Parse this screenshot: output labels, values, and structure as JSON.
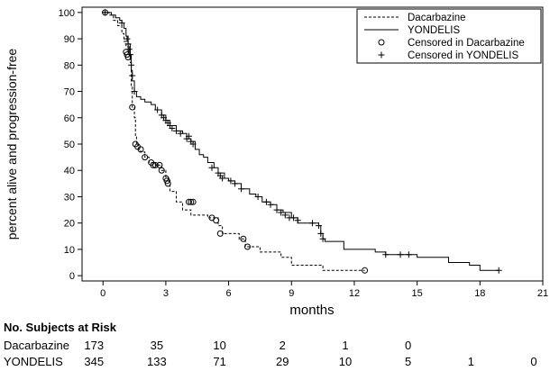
{
  "chart_data": {
    "type": "line",
    "subtype": "kaplan-meier",
    "xlabel": "months",
    "ylabel": "percent alive and progression-free",
    "xlim": [
      -1,
      21
    ],
    "ylim": [
      -2,
      102
    ],
    "xticks": [
      0,
      3,
      6,
      9,
      12,
      15,
      18,
      21
    ],
    "yticks": [
      0,
      10,
      20,
      30,
      40,
      50,
      60,
      70,
      80,
      90,
      100
    ],
    "grid": false,
    "legend_position": "top-right",
    "series": [
      {
        "name": "Dacarbazine",
        "line_style": "dashed",
        "color": "#000000",
        "steps": [
          [
            0,
            100
          ],
          [
            0.3,
            99
          ],
          [
            0.5,
            97
          ],
          [
            0.7,
            95
          ],
          [
            0.9,
            92
          ],
          [
            1.0,
            89
          ],
          [
            1.1,
            87
          ],
          [
            1.2,
            85
          ],
          [
            1.3,
            81
          ],
          [
            1.35,
            72
          ],
          [
            1.4,
            64
          ],
          [
            1.5,
            60
          ],
          [
            1.55,
            53
          ],
          [
            1.6,
            50
          ],
          [
            1.7,
            48
          ],
          [
            1.8,
            47
          ],
          [
            2.0,
            45
          ],
          [
            2.2,
            43
          ],
          [
            2.5,
            42
          ],
          [
            2.8,
            40
          ],
          [
            3.0,
            37
          ],
          [
            3.2,
            32
          ],
          [
            3.5,
            28
          ],
          [
            3.8,
            25
          ],
          [
            4.2,
            23
          ],
          [
            4.5,
            23
          ],
          [
            5.0,
            22
          ],
          [
            5.5,
            19
          ],
          [
            5.7,
            16
          ],
          [
            6.5,
            14
          ],
          [
            6.8,
            11
          ],
          [
            7.5,
            9
          ],
          [
            8.0,
            9
          ],
          [
            8.5,
            7
          ],
          [
            9.0,
            4
          ],
          [
            9.5,
            4
          ],
          [
            10.0,
            4
          ],
          [
            10.5,
            2
          ],
          [
            11.0,
            2
          ],
          [
            12.5,
            2
          ]
        ],
        "censored": [
          [
            0.1,
            100
          ],
          [
            1.1,
            85
          ],
          [
            1.15,
            84
          ],
          [
            1.2,
            83
          ],
          [
            1.4,
            64
          ],
          [
            1.55,
            50
          ],
          [
            1.65,
            49
          ],
          [
            1.8,
            48
          ],
          [
            2.0,
            45
          ],
          [
            2.3,
            43
          ],
          [
            2.4,
            42
          ],
          [
            2.5,
            42
          ],
          [
            2.7,
            42
          ],
          [
            2.8,
            40
          ],
          [
            3.0,
            37
          ],
          [
            3.05,
            36
          ],
          [
            3.1,
            35
          ],
          [
            4.1,
            28
          ],
          [
            4.2,
            28
          ],
          [
            4.3,
            28
          ],
          [
            5.2,
            22
          ],
          [
            5.4,
            21
          ],
          [
            5.6,
            16
          ],
          [
            6.7,
            14
          ],
          [
            6.9,
            11
          ],
          [
            12.5,
            2
          ]
        ]
      },
      {
        "name": "YONDELIS",
        "line_style": "solid",
        "color": "#000000",
        "steps": [
          [
            0,
            100
          ],
          [
            0.4,
            99
          ],
          [
            0.6,
            98
          ],
          [
            0.8,
            97
          ],
          [
            0.9,
            96
          ],
          [
            1.0,
            94
          ],
          [
            1.1,
            91
          ],
          [
            1.2,
            88
          ],
          [
            1.3,
            84
          ],
          [
            1.35,
            78
          ],
          [
            1.4,
            74
          ],
          [
            1.5,
            70
          ],
          [
            1.6,
            68
          ],
          [
            1.8,
            67
          ],
          [
            2.0,
            66
          ],
          [
            2.3,
            65
          ],
          [
            2.5,
            63
          ],
          [
            2.8,
            61
          ],
          [
            3.0,
            59
          ],
          [
            3.2,
            57
          ],
          [
            3.5,
            55
          ],
          [
            3.8,
            54
          ],
          [
            4.0,
            52
          ],
          [
            4.2,
            51
          ],
          [
            4.4,
            48
          ],
          [
            4.6,
            46
          ],
          [
            4.8,
            45
          ],
          [
            5.0,
            43
          ],
          [
            5.3,
            41
          ],
          [
            5.5,
            39
          ],
          [
            5.8,
            37
          ],
          [
            6.0,
            36
          ],
          [
            6.3,
            35
          ],
          [
            6.6,
            33
          ],
          [
            7.0,
            31
          ],
          [
            7.3,
            30
          ],
          [
            7.6,
            28
          ],
          [
            8.0,
            27
          ],
          [
            8.3,
            25
          ],
          [
            8.6,
            24
          ],
          [
            9.0,
            22
          ],
          [
            9.3,
            20
          ],
          [
            9.6,
            20
          ],
          [
            10.0,
            20
          ],
          [
            10.3,
            19
          ],
          [
            10.4,
            16
          ],
          [
            10.5,
            14
          ],
          [
            10.6,
            13
          ],
          [
            11.0,
            13
          ],
          [
            11.5,
            10
          ],
          [
            12.5,
            10
          ],
          [
            13.0,
            9
          ],
          [
            13.5,
            8
          ],
          [
            14.0,
            8
          ],
          [
            14.5,
            8
          ],
          [
            15.0,
            7
          ],
          [
            15.5,
            7
          ],
          [
            16.5,
            5
          ],
          [
            17.5,
            4
          ],
          [
            18.0,
            2
          ],
          [
            18.9,
            2
          ]
        ],
        "censored": [
          [
            0.1,
            100
          ],
          [
            0.9,
            96
          ],
          [
            1.15,
            90
          ],
          [
            1.2,
            88
          ],
          [
            1.25,
            86
          ],
          [
            1.3,
            84
          ],
          [
            1.35,
            80
          ],
          [
            1.4,
            76
          ],
          [
            1.5,
            70
          ],
          [
            2.6,
            63
          ],
          [
            2.8,
            61
          ],
          [
            2.9,
            60
          ],
          [
            3.0,
            59
          ],
          [
            3.1,
            58
          ],
          [
            3.2,
            57
          ],
          [
            3.3,
            56
          ],
          [
            3.5,
            55
          ],
          [
            3.7,
            54
          ],
          [
            4.0,
            52
          ],
          [
            4.1,
            53
          ],
          [
            4.2,
            51
          ],
          [
            4.3,
            50
          ],
          [
            5.2,
            41
          ],
          [
            5.5,
            39
          ],
          [
            5.6,
            38
          ],
          [
            5.7,
            37
          ],
          [
            6.1,
            36
          ],
          [
            6.3,
            35
          ],
          [
            6.6,
            33
          ],
          [
            7.4,
            30
          ],
          [
            7.8,
            28
          ],
          [
            8.0,
            27
          ],
          [
            8.3,
            25
          ],
          [
            8.5,
            24
          ],
          [
            8.7,
            23
          ],
          [
            8.9,
            22
          ],
          [
            9.1,
            22
          ],
          [
            9.3,
            21
          ],
          [
            10.0,
            20
          ],
          [
            10.3,
            19
          ],
          [
            10.4,
            16
          ],
          [
            10.5,
            14
          ],
          [
            13.5,
            8
          ],
          [
            14.2,
            8
          ],
          [
            14.6,
            8
          ],
          [
            18.9,
            2
          ]
        ]
      }
    ],
    "legend": [
      {
        "label": "Dacarbazine",
        "symbol": "dashed-line"
      },
      {
        "label": "YONDELIS",
        "symbol": "solid-line"
      },
      {
        "label": "Censored in Dacarbazine",
        "symbol": "circle"
      },
      {
        "label": "Censored in YONDELIS",
        "symbol": "plus"
      }
    ]
  },
  "risk_table": {
    "title": "No. Subjects at Risk",
    "rows": [
      {
        "label": "Dacarbazine",
        "values": [
          "173",
          "35",
          "10",
          "2",
          "1",
          "0"
        ]
      },
      {
        "label": "YONDELIS",
        "values": [
          "345",
          "133",
          "71",
          "29",
          "10",
          "5",
          "1",
          "0"
        ]
      }
    ]
  }
}
